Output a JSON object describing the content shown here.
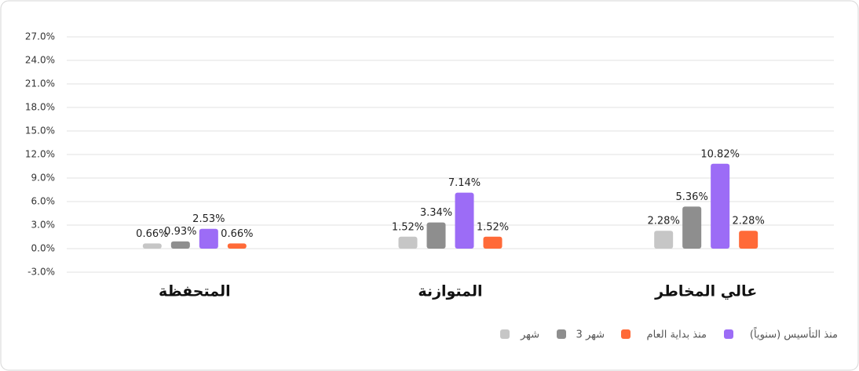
{
  "chart_data": {
    "type": "bar",
    "categories": [
      "المتحفظة",
      "المتوازنة",
      "عالي المخاطر"
    ],
    "series": [
      {
        "name": "شهر",
        "color": "#c6c6c6",
        "values": [
          0.66,
          1.52,
          2.28
        ],
        "value_labels": [
          "0.66%",
          "1.52%",
          "2.28%"
        ]
      },
      {
        "name": "3 شهر",
        "color": "#8e8e8e",
        "values": [
          0.93,
          3.34,
          5.36
        ],
        "value_labels": [
          "0.93%",
          "3.34%",
          "5.36%"
        ]
      },
      {
        "name": "منذ التأسيس (سنوياً)",
        "color": "#9c6cf6",
        "values": [
          2.53,
          7.14,
          10.82
        ],
        "value_labels": [
          "2.53%",
          "7.14%",
          "10.82%"
        ]
      },
      {
        "name": "منذ بداية العام",
        "color": "#ff6a38",
        "values": [
          0.66,
          1.52,
          2.28
        ],
        "value_labels": [
          "0.66%",
          "1.52%",
          "2.28%"
        ]
      }
    ],
    "ylim": [
      -3,
      27
    ],
    "yticks": [
      {
        "value": -3,
        "label": "-3.0%"
      },
      {
        "value": 0,
        "label": "0.0%"
      },
      {
        "value": 3,
        "label": "3.0%"
      },
      {
        "value": 6,
        "label": "6.0%"
      },
      {
        "value": 9,
        "label": "9.0%"
      },
      {
        "value": 12,
        "label": "12.0%"
      },
      {
        "value": 15,
        "label": "15.0%"
      },
      {
        "value": 18,
        "label": "18.0%"
      },
      {
        "value": 21,
        "label": "21.0%"
      },
      {
        "value": 24,
        "label": "24.0%"
      },
      {
        "value": 27,
        "label": "27.0%"
      }
    ],
    "grid": true
  }
}
